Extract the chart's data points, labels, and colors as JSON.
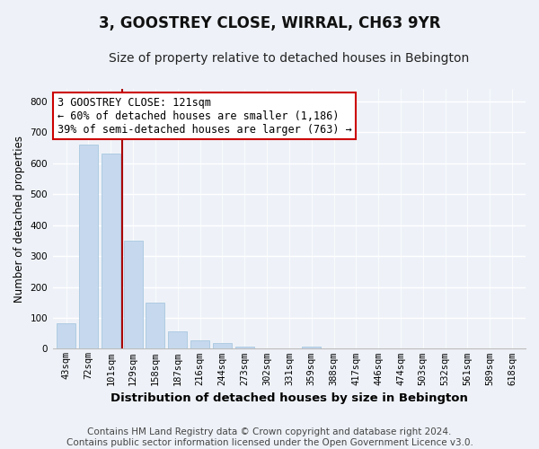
{
  "title": "3, GOOSTREY CLOSE, WIRRAL, CH63 9YR",
  "subtitle": "Size of property relative to detached houses in Bebington",
  "xlabel": "Distribution of detached houses by size in Bebington",
  "ylabel": "Number of detached properties",
  "bar_labels": [
    "43sqm",
    "72sqm",
    "101sqm",
    "129sqm",
    "158sqm",
    "187sqm",
    "216sqm",
    "244sqm",
    "273sqm",
    "302sqm",
    "331sqm",
    "359sqm",
    "388sqm",
    "417sqm",
    "446sqm",
    "474sqm",
    "503sqm",
    "532sqm",
    "561sqm",
    "589sqm",
    "618sqm"
  ],
  "bar_values": [
    82,
    660,
    630,
    350,
    148,
    57,
    27,
    18,
    8,
    0,
    0,
    7,
    0,
    0,
    0,
    0,
    0,
    0,
    0,
    0,
    0
  ],
  "bar_color": "#c5d8ed",
  "bar_edge_color": "#a8c8e0",
  "vline_x": 2.5,
  "vline_color": "#aa0000",
  "annotation_line1": "3 GOOSTREY CLOSE: 121sqm",
  "annotation_line2": "← 60% of detached houses are smaller (1,186)",
  "annotation_line3": "39% of semi-detached houses are larger (763) →",
  "annotation_box_color": "#ffffff",
  "annotation_box_edge": "#cc0000",
  "ylim": [
    0,
    840
  ],
  "yticks": [
    0,
    100,
    200,
    300,
    400,
    500,
    600,
    700,
    800
  ],
  "footer_text": "Contains HM Land Registry data © Crown copyright and database right 2024.\nContains public sector information licensed under the Open Government Licence v3.0.",
  "bg_color": "#eef2f8",
  "grid_color": "#ffffff",
  "title_fontsize": 12,
  "subtitle_fontsize": 10,
  "xlabel_fontsize": 9.5,
  "ylabel_fontsize": 8.5,
  "footer_fontsize": 7.5,
  "tick_fontsize": 7.5
}
